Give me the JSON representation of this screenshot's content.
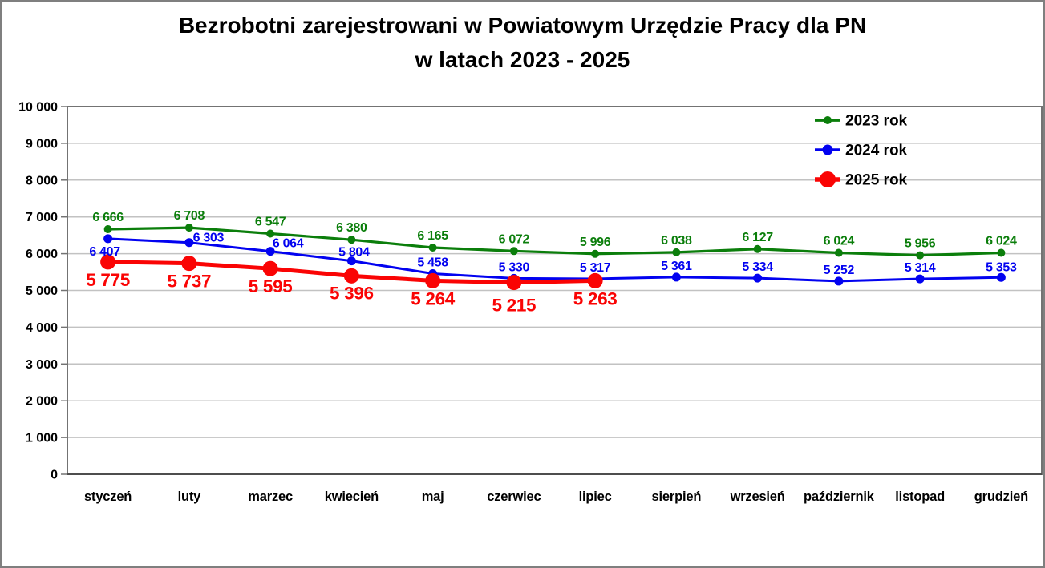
{
  "title": {
    "line1": "Bezrobotni zarejestrowani w Powiatowym Urzędzie Pracy dla PN",
    "line2": "w latach 2023 - 2025"
  },
  "colors": {
    "series_2023": "#0b7e0b",
    "series_2024": "#0202f0",
    "series_2025": "#fa0404",
    "gridline": "#c2c2c2",
    "plot_border": "#737373",
    "axis_line": "#4d4d4d",
    "text": "#000000"
  },
  "chart_data": {
    "type": "line",
    "title": "Bezrobotni zarejestrowani w Powiatowym Urzędzie Pracy dla PN w latach 2023 - 2025",
    "categories": [
      "styczeń",
      "luty",
      "marzec",
      "kwiecień",
      "maj",
      "czerwiec",
      "lipiec",
      "sierpień",
      "wrzesień",
      "październik",
      "listopad",
      "grudzień"
    ],
    "series": [
      {
        "name": "2023 rok",
        "color_key": "series_2023",
        "values": [
          6666,
          6708,
          6547,
          6380,
          6165,
          6072,
          5996,
          6038,
          6127,
          6024,
          5956,
          6024
        ],
        "labels": [
          "6 666",
          "6 708",
          "6 547",
          "6 380",
          "6 165",
          "6 072",
          "5 996",
          "6 038",
          "6 127",
          "6 024",
          "5 956",
          "6 024"
        ]
      },
      {
        "name": "2024 rok",
        "color_key": "series_2024",
        "values": [
          6407,
          6303,
          6064,
          5804,
          5458,
          5330,
          5317,
          5361,
          5334,
          5252,
          5314,
          5353
        ],
        "labels": [
          "6 407",
          "6 303",
          "6 064",
          "5 804",
          "5 458",
          "5 330",
          "5 317",
          "5 361",
          "5 334",
          "5 252",
          "5 314",
          "5 353"
        ]
      },
      {
        "name": "2025 rok",
        "color_key": "series_2025",
        "values": [
          5775,
          5737,
          5595,
          5396,
          5264,
          5215,
          5263
        ],
        "labels": [
          "5 775",
          "5 737",
          "5 595",
          "5 396",
          "5 264",
          "5 215",
          "5 263"
        ]
      }
    ],
    "y_axis": {
      "min": 0,
      "max": 10000,
      "step": 1000,
      "tick_labels": [
        "0",
        "1 000",
        "2 000",
        "3 000",
        "4 000",
        "5 000",
        "6 000",
        "7 000",
        "8 000",
        "9 000",
        "10 000"
      ]
    },
    "xlabel": "",
    "ylabel": "",
    "grid": true,
    "legend": {
      "position": "top-right",
      "entries": [
        "2023 rok",
        "2024 rok",
        "2025 rok"
      ]
    }
  }
}
